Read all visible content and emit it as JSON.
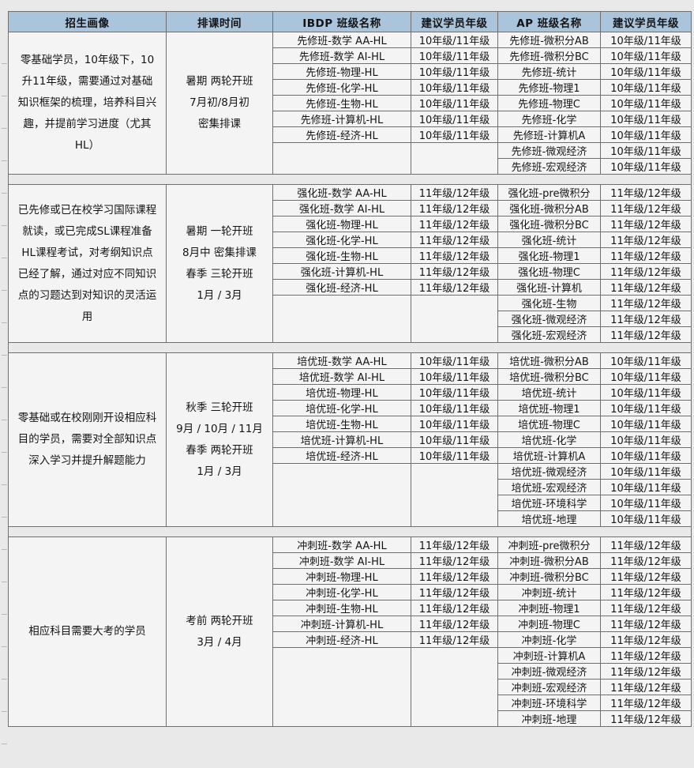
{
  "colors": {
    "page_bg": "#e9e9e9",
    "cell_bg": "#f4f4f4",
    "header_bg": "#aac4dc",
    "border": "#6f6f6f",
    "text": "#141414"
  },
  "table": {
    "headers": [
      "招生画像",
      "排课时间",
      "IBDP 班级名称",
      "建议学员年级",
      "AP 班级名称",
      "建议学员年级"
    ],
    "sections": [
      {
        "profile": "零基础学员，10年级下，10升11年级，需要通过对基础知识框架的梳理，培养科目兴趣，并提前学习进度（尤其HL）",
        "schedule_lines": [
          "暑期 两轮开班",
          "7月初/8月初",
          "密集排课"
        ],
        "ibdp": [
          {
            "name": "先修班-数学 AA-HL",
            "grade": "10年级/11年级"
          },
          {
            "name": "先修班-数学 AI-HL",
            "grade": "10年级/11年级"
          },
          {
            "name": "先修班-物理-HL",
            "grade": "10年级/11年级"
          },
          {
            "name": "先修班-化学-HL",
            "grade": "10年级/11年级"
          },
          {
            "name": "先修班-生物-HL",
            "grade": "10年级/11年级"
          },
          {
            "name": "先修班-计算机-HL",
            "grade": "10年级/11年级"
          },
          {
            "name": "先修班-经济-HL",
            "grade": "10年级/11年级"
          }
        ],
        "ap": [
          {
            "name": "先修班-微积分AB",
            "grade": "10年级/11年级"
          },
          {
            "name": "先修班-微积分BC",
            "grade": "10年级/11年级"
          },
          {
            "name": "先修班-统计",
            "grade": "10年级/11年级"
          },
          {
            "name": "先修班-物理1",
            "grade": "10年级/11年级"
          },
          {
            "name": "先修班-物理C",
            "grade": "10年级/11年级"
          },
          {
            "name": "先修班-化学",
            "grade": "10年级/11年级"
          },
          {
            "name": "先修班-计算机A",
            "grade": "10年级/11年级"
          },
          {
            "name": "先修班-微观经济",
            "grade": "10年级/11年级"
          },
          {
            "name": "先修班-宏观经济",
            "grade": "10年级/11年级"
          }
        ]
      },
      {
        "profile": "已先修或已在校学习国际课程就读，或已完成SL课程准备HL课程考试，对考纲知识点已经了解，通过对应不同知识点的习题达到对知识的灵活运用",
        "schedule_lines": [
          "暑期 一轮开班",
          "8月中 密集排课",
          "春季 三轮开班",
          "1月 / 3月"
        ],
        "ibdp": [
          {
            "name": "强化班-数学 AA-HL",
            "grade": "11年级/12年级"
          },
          {
            "name": "强化班-数学 AI-HL",
            "grade": "11年级/12年级"
          },
          {
            "name": "强化班-物理-HL",
            "grade": "11年级/12年级"
          },
          {
            "name": "强化班-化学-HL",
            "grade": "11年级/12年级"
          },
          {
            "name": "强化班-生物-HL",
            "grade": "11年级/12年级"
          },
          {
            "name": "强化班-计算机-HL",
            "grade": "11年级/12年级"
          },
          {
            "name": "强化班-经济-HL",
            "grade": "11年级/12年级"
          }
        ],
        "ap": [
          {
            "name": "强化班-pre微积分",
            "grade": "11年级/12年级"
          },
          {
            "name": "强化班-微积分AB",
            "grade": "11年级/12年级"
          },
          {
            "name": "强化班-微积分BC",
            "grade": "11年级/12年级"
          },
          {
            "name": "强化班-统计",
            "grade": "11年级/12年级"
          },
          {
            "name": "强化班-物理1",
            "grade": "11年级/12年级"
          },
          {
            "name": "强化班-物理C",
            "grade": "11年级/12年级"
          },
          {
            "name": "强化班-计算机",
            "grade": "11年级/12年级"
          },
          {
            "name": "强化班-生物",
            "grade": "11年级/12年级"
          },
          {
            "name": "强化班-微观经济",
            "grade": "11年级/12年级"
          },
          {
            "name": "强化班-宏观经济",
            "grade": "11年级/12年级"
          }
        ]
      },
      {
        "profile": "零基础或在校刚刚开设相应科目的学员，需要对全部知识点深入学习并提升解题能力",
        "schedule_lines": [
          "秋季 三轮开班",
          "9月 / 10月 / 11月",
          "春季 两轮开班",
          "1月 / 3月"
        ],
        "ibdp": [
          {
            "name": "培优班-数学 AA-HL",
            "grade": "10年级/11年级"
          },
          {
            "name": "培优班-数学 AI-HL",
            "grade": "10年级/11年级"
          },
          {
            "name": "培优班-物理-HL",
            "grade": "10年级/11年级"
          },
          {
            "name": "培优班-化学-HL",
            "grade": "10年级/11年级"
          },
          {
            "name": "培优班-生物-HL",
            "grade": "10年级/11年级"
          },
          {
            "name": "培优班-计算机-HL",
            "grade": "10年级/11年级"
          },
          {
            "name": "培优班-经济-HL",
            "grade": "10年级/11年级"
          }
        ],
        "ap": [
          {
            "name": "培优班-微积分AB",
            "grade": "10年级/11年级"
          },
          {
            "name": "培优班-微积分BC",
            "grade": "10年级/11年级"
          },
          {
            "name": "培优班-统计",
            "grade": "10年级/11年级"
          },
          {
            "name": "培优班-物理1",
            "grade": "10年级/11年级"
          },
          {
            "name": "培优班-物理C",
            "grade": "10年级/11年级"
          },
          {
            "name": "培优班-化学",
            "grade": "10年级/11年级"
          },
          {
            "name": "培优班-计算机A",
            "grade": "10年级/11年级"
          },
          {
            "name": "培优班-微观经济",
            "grade": "10年级/11年级"
          },
          {
            "name": "培优班-宏观经济",
            "grade": "10年级/11年级"
          },
          {
            "name": "培优班-环境科学",
            "grade": "10年级/11年级"
          },
          {
            "name": "培优班-地理",
            "grade": "10年级/11年级"
          }
        ]
      },
      {
        "profile": "相应科目需要大考的学员",
        "schedule_lines": [
          "考前 两轮开班",
          "3月 / 4月"
        ],
        "ibdp": [
          {
            "name": "冲刺班-数学 AA-HL",
            "grade": "11年级/12年级"
          },
          {
            "name": "冲刺班-数学 AI-HL",
            "grade": "11年级/12年级"
          },
          {
            "name": "冲刺班-物理-HL",
            "grade": "11年级/12年级"
          },
          {
            "name": "冲刺班-化学-HL",
            "grade": "11年级/12年级"
          },
          {
            "name": "冲刺班-生物-HL",
            "grade": "11年级/12年级"
          },
          {
            "name": "冲刺班-计算机-HL",
            "grade": "11年级/12年级"
          },
          {
            "name": "冲刺班-经济-HL",
            "grade": "11年级/12年级"
          }
        ],
        "ap": [
          {
            "name": "冲刺班-pre微积分",
            "grade": "11年级/12年级"
          },
          {
            "name": "冲刺班-微积分AB",
            "grade": "11年级/12年级"
          },
          {
            "name": "冲刺班-微积分BC",
            "grade": "11年级/12年级"
          },
          {
            "name": "冲刺班-统计",
            "grade": "11年级/12年级"
          },
          {
            "name": "冲刺班-物理1",
            "grade": "11年级/12年级"
          },
          {
            "name": "冲刺班-物理C",
            "grade": "11年级/12年级"
          },
          {
            "name": "冲刺班-化学",
            "grade": "11年级/12年级"
          },
          {
            "name": "冲刺班-计算机A",
            "grade": "11年级/12年级"
          },
          {
            "name": "冲刺班-微观经济",
            "grade": "11年级/12年级"
          },
          {
            "name": "冲刺班-宏观经济",
            "grade": "11年级/12年级"
          },
          {
            "name": "冲刺班-环境科学",
            "grade": "11年级/12年级"
          },
          {
            "name": "冲刺班-地理",
            "grade": "11年级/12年级"
          }
        ]
      }
    ]
  }
}
